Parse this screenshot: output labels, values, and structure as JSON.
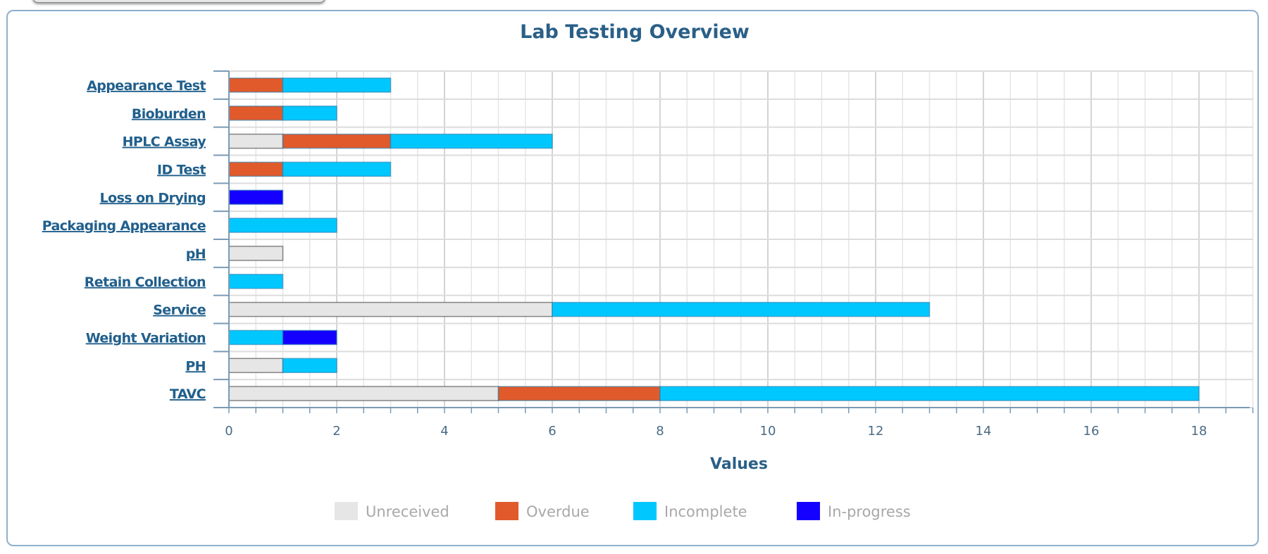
{
  "chart_data": {
    "type": "bar",
    "orientation": "horizontal",
    "stacked": true,
    "title": "Lab Testing Overview",
    "xlabel": "Values",
    "ylabel": "",
    "xlim": [
      0,
      19
    ],
    "xticks": [
      0,
      2,
      4,
      6,
      8,
      10,
      12,
      14,
      16,
      18
    ],
    "grid": true,
    "legend_position": "bottom",
    "categories": [
      "Appearance Test",
      "Bioburden",
      "HPLC Assay",
      "ID Test",
      "Loss on Drying",
      "Packaging Appearance",
      "pH",
      "Retain Collection",
      "Service",
      "Weight Variation",
      "PH",
      "TAVC"
    ],
    "series": [
      {
        "name": "Unreceived",
        "color": "#e6e6e6",
        "values": [
          0,
          0,
          1,
          0,
          0,
          0,
          1,
          0,
          6,
          0,
          1,
          5
        ]
      },
      {
        "name": "Overdue",
        "color": "#e05a2b",
        "values": [
          1,
          1,
          2,
          1,
          0,
          0,
          0,
          0,
          0,
          0,
          0,
          3
        ]
      },
      {
        "name": "Incomplete",
        "color": "#00c8ff",
        "values": [
          2,
          1,
          3,
          2,
          0,
          2,
          0,
          1,
          7,
          1,
          1,
          10
        ]
      },
      {
        "name": "In-progress",
        "color": "#1400ff",
        "values": [
          0,
          0,
          0,
          0,
          1,
          0,
          0,
          0,
          0,
          1,
          0,
          0
        ]
      }
    ]
  }
}
